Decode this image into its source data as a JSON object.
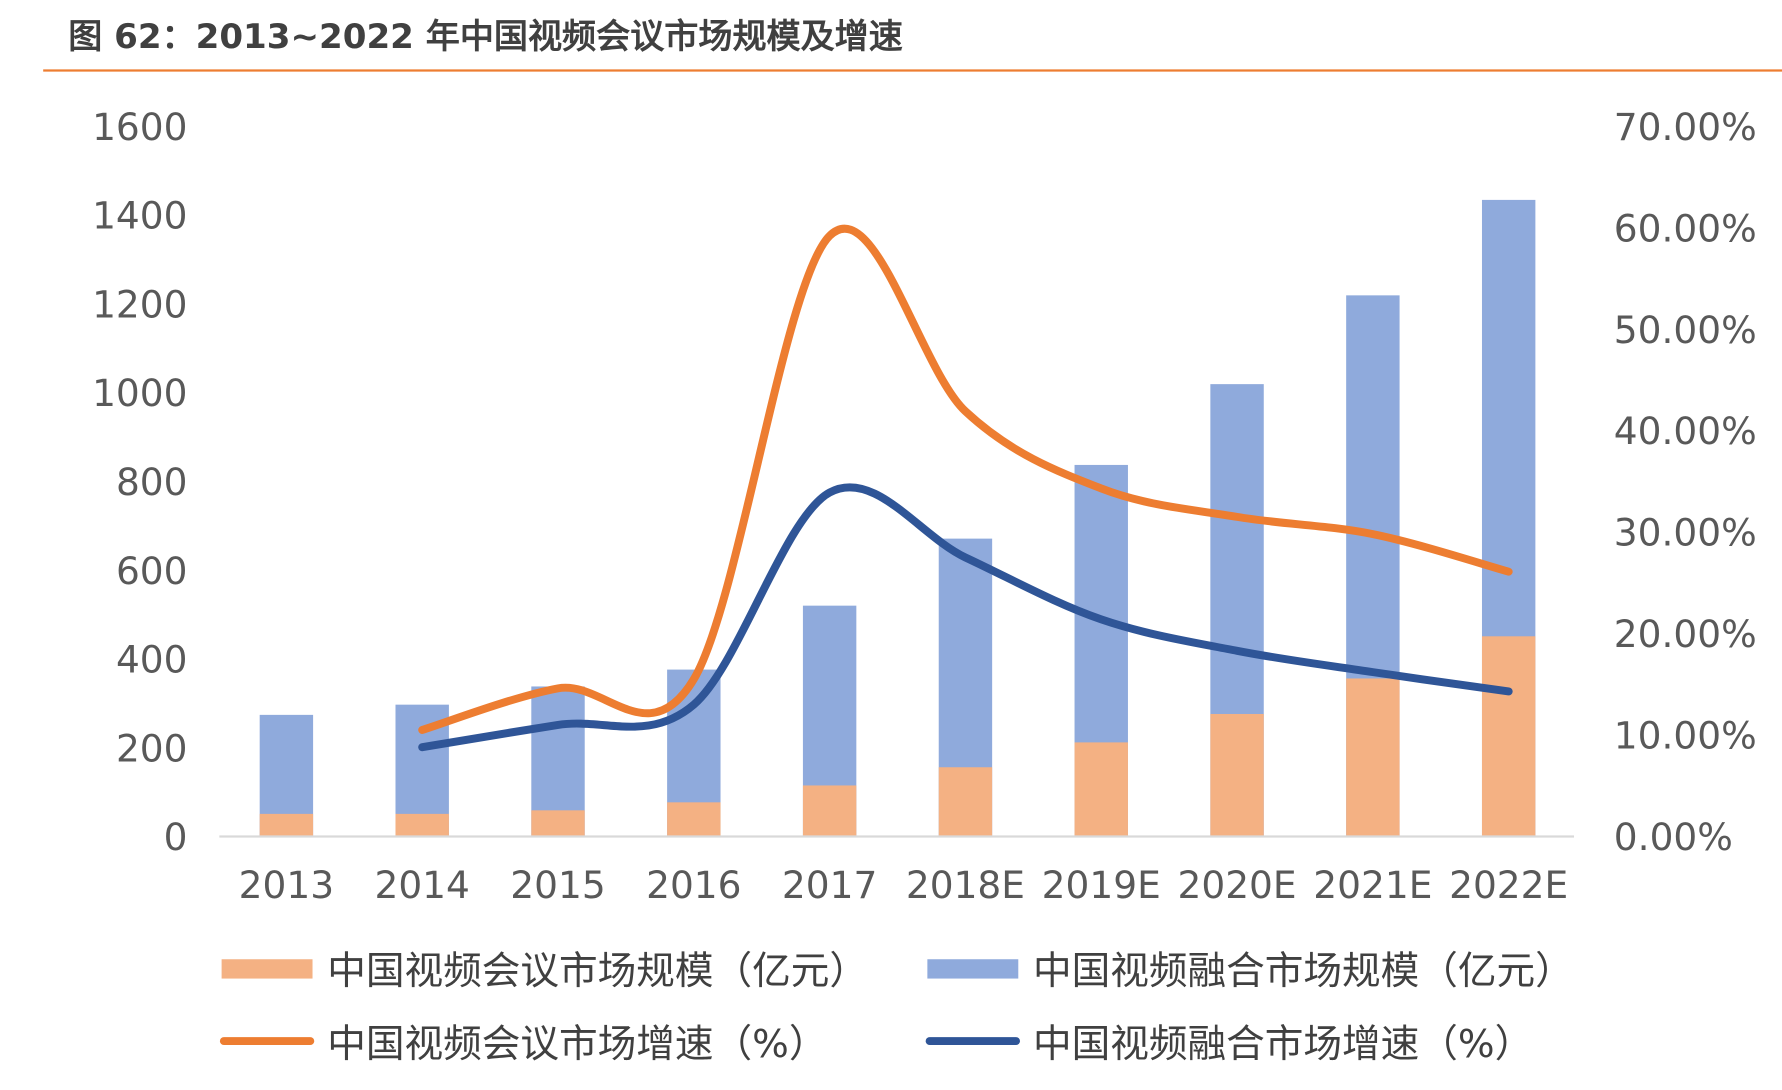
{
  "chart_data": {
    "type": "bar+line",
    "title": "图 62：2013~2022 年中国视频会议市场规模及增速",
    "categories": [
      "2013",
      "2014",
      "2015",
      "2016",
      "2017",
      "2018E",
      "2019E",
      "2020E",
      "2021E",
      "2022E"
    ],
    "y_left": {
      "min": 0,
      "max": 1600,
      "ticks": [
        "0",
        "200",
        "400",
        "600",
        "800",
        "1000",
        "1200",
        "1400",
        "1600"
      ]
    },
    "y_right": {
      "min": 0,
      "max": 70,
      "ticks": [
        "0.00%",
        "10.00%",
        "20.00%",
        "30.00%",
        "40.00%",
        "50.00%",
        "60.00%",
        "70.00%"
      ]
    },
    "grid": false,
    "legend_position": "bottom",
    "bar_series": [
      {
        "name": "中国视频融合市场规模（亿元）",
        "color": "#8FAADC",
        "values": [
          274,
          297,
          338,
          376,
          520,
          671,
          837,
          1019,
          1219,
          1434
        ]
      },
      {
        "name": "中国视频会议市场规模（亿元）",
        "color": "#F4B183",
        "values": [
          51,
          51,
          59,
          77,
          115,
          156,
          212,
          276,
          356,
          451
        ]
      }
    ],
    "line_series": [
      {
        "name": "中国视频会议市场增速（%）",
        "color": "#ED7D31",
        "values": [
          null,
          10.5,
          14.6,
          15.5,
          59.2,
          41.9,
          34.3,
          31.5,
          29.8,
          26.1
        ]
      },
      {
        "name": "中国视频融合市场增速（%）",
        "color": "#2F5597",
        "values": [
          null,
          8.8,
          11.0,
          13.0,
          33.9,
          27.5,
          21.4,
          18.3,
          16.2,
          14.3
        ]
      }
    ],
    "legend": [
      "中国视频会议市场规模（亿元）",
      "中国视频融合市场规模（亿元）",
      "中国视频会议市场增速（%）",
      "中国视频融合市场增速（%）"
    ],
    "accent_color": "#ED7D31"
  }
}
